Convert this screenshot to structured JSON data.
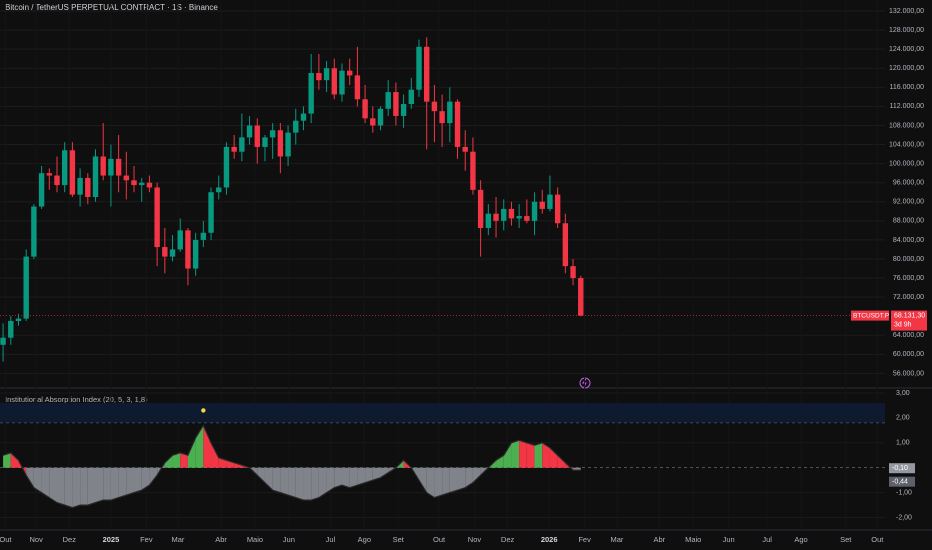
{
  "chart_data": {
    "type": "candlestick",
    "title": "Bitcoin / TetherUS PERPETUAL CONTRACT · 1S · Binance",
    "symbol": "BTCUSDT.P",
    "countdown": "3d 9h",
    "last_price": {
      "value": 68131.3,
      "label": "68.131,30"
    },
    "up_color": "#089981",
    "down_color": "#f23645",
    "open": [
      62000,
      63500,
      67000,
      67500,
      80500,
      91000,
      98000,
      97500,
      95500,
      102800,
      93500,
      97000,
      93000,
      101500,
      97500,
      101000,
      97500,
      96500,
      95500,
      96000,
      95000,
      82500,
      80500,
      82000,
      86000,
      78000,
      84000,
      85500,
      94000,
      95000,
      103500,
      102500,
      105500,
      108000,
      103500,
      105500,
      107000,
      101500,
      106500,
      109000,
      110500,
      119000,
      117500,
      120000,
      114500,
      119500,
      118500,
      113500,
      109500,
      108000,
      111500,
      115000,
      110000,
      112500,
      115500,
      124500,
      113000,
      111000,
      108500,
      113000,
      103500,
      102500,
      94500,
      86500,
      89500,
      88000,
      90500,
      88500,
      89000,
      88000,
      92000,
      90500,
      93500,
      87500,
      78500,
      76000
    ],
    "high": [
      66500,
      68000,
      68500,
      82000,
      91500,
      99500,
      99000,
      101500,
      104500,
      104500,
      99000,
      98000,
      103000,
      108500,
      104000,
      106000,
      102500,
      99500,
      97000,
      97500,
      96000,
      86500,
      85000,
      88500,
      86500,
      85500,
      88000,
      95000,
      97500,
      104500,
      106000,
      110500,
      110000,
      109500,
      106000,
      108500,
      108500,
      108000,
      111500,
      112000,
      123000,
      123000,
      121500,
      122000,
      121000,
      122000,
      124500,
      116500,
      112000,
      112000,
      117500,
      117000,
      114500,
      118000,
      126000,
      126500,
      116500,
      114500,
      116000,
      113500,
      107000,
      105500,
      96500,
      91500,
      93000,
      92500,
      92000,
      91500,
      92500,
      94000,
      94500,
      97500,
      95000,
      89500,
      80000,
      76500
    ],
    "low": [
      58500,
      62000,
      66000,
      67000,
      80000,
      90500,
      94500,
      94000,
      94000,
      93000,
      91000,
      91500,
      92000,
      96500,
      91000,
      94000,
      92500,
      94000,
      92000,
      94000,
      78500,
      77000,
      79500,
      81500,
      74500,
      76500,
      82500,
      84000,
      92500,
      93500,
      101000,
      100500,
      104000,
      100000,
      100500,
      101000,
      98000,
      99500,
      104000,
      107000,
      108500,
      115500,
      115000,
      113500,
      113000,
      116500,
      112000,
      108500,
      106500,
      107000,
      110000,
      108000,
      107500,
      111500,
      114000,
      103000,
      104500,
      103500,
      104500,
      101000,
      98500,
      93500,
      80500,
      85000,
      84500,
      86000,
      87000,
      86500,
      87500,
      85000,
      89500,
      90000,
      86500,
      77000,
      74500,
      68000
    ],
    "close": [
      63500,
      67000,
      67500,
      80500,
      91000,
      98000,
      97500,
      95500,
      102800,
      93500,
      97000,
      93000,
      101500,
      97500,
      101000,
      97500,
      96500,
      95500,
      96000,
      95000,
      82500,
      80500,
      82000,
      86000,
      78000,
      84000,
      85500,
      94000,
      95000,
      103500,
      102500,
      105500,
      108000,
      103500,
      105500,
      107000,
      101500,
      106500,
      109000,
      110500,
      119000,
      117500,
      120000,
      114500,
      119500,
      118500,
      113500,
      109500,
      108000,
      111500,
      115000,
      110000,
      112500,
      115500,
      124500,
      113000,
      111000,
      108500,
      113000,
      103500,
      102500,
      94500,
      86500,
      89500,
      88000,
      90500,
      88500,
      89000,
      88000,
      92000,
      90500,
      93500,
      87500,
      78500,
      76000,
      68131.3
    ],
    "ylim": [
      52000,
      134000
    ],
    "yticks": [
      {
        "value": 56000,
        "label": "56.000,00"
      },
      {
        "value": 60000,
        "label": "60.000,00"
      },
      {
        "value": 64000,
        "label": "64.000,00"
      },
      {
        "value": 72000,
        "label": "72.000,00"
      },
      {
        "value": 76000,
        "label": "76.000,00"
      },
      {
        "value": 80000,
        "label": "80.000,00"
      },
      {
        "value": 84000,
        "label": "84.000,00"
      },
      {
        "value": 88000,
        "label": "88.000,00"
      },
      {
        "value": 92000,
        "label": "92.000,00"
      },
      {
        "value": 96000,
        "label": "96.000,00"
      },
      {
        "value": 100000,
        "label": "100.000,00"
      },
      {
        "value": 104000,
        "label": "104.000,00"
      },
      {
        "value": 108000,
        "label": "108.000,00"
      },
      {
        "value": 112000,
        "label": "112.000,00"
      },
      {
        "value": 116000,
        "label": "116.000,00"
      },
      {
        "value": 120000,
        "label": "120.000,00"
      },
      {
        "value": 124000,
        "label": "124.000,00"
      },
      {
        "value": 128000,
        "label": "128.000,00"
      },
      {
        "value": 132000,
        "label": "132.000,00"
      }
    ],
    "xlim": [
      -0.4,
      114.5
    ],
    "xticks": [
      {
        "value": 0.3,
        "label": "Out"
      },
      {
        "value": 4.3,
        "label": "Nov"
      },
      {
        "value": 8.6,
        "label": "Dez"
      },
      {
        "value": 14,
        "label": "2025"
      },
      {
        "value": 18.6,
        "label": "Fev"
      },
      {
        "value": 22.7,
        "label": "Mar"
      },
      {
        "value": 28.3,
        "label": "Abr"
      },
      {
        "value": 32.7,
        "label": "Maio"
      },
      {
        "value": 37.1,
        "label": "Jun"
      },
      {
        "value": 42.5,
        "label": "Jul"
      },
      {
        "value": 46.9,
        "label": "Ago"
      },
      {
        "value": 51.3,
        "label": "Set"
      },
      {
        "value": 56.6,
        "label": "Out"
      },
      {
        "value": 61.2,
        "label": "Nov"
      },
      {
        "value": 65.5,
        "label": "Dez"
      },
      {
        "value": 70.9,
        "label": "2026"
      },
      {
        "value": 75.5,
        "label": "Fev"
      },
      {
        "value": 79.7,
        "label": "Mar"
      },
      {
        "value": 85.2,
        "label": "Abr"
      },
      {
        "value": 89.6,
        "label": "Maio"
      },
      {
        "value": 94.2,
        "label": "Jun"
      },
      {
        "value": 99.2,
        "label": "Jul"
      },
      {
        "value": 103.6,
        "label": "Ago"
      },
      {
        "value": 109.4,
        "label": "Set"
      },
      {
        "value": 113.5,
        "label": "Out"
      }
    ],
    "indicator": {
      "title": "Institutional Absorption Index (20, 5, 3, 1,8)",
      "values": [
        0.5,
        0.6,
        0.3,
        -0.3,
        -0.8,
        -1.0,
        -1.2,
        -1.4,
        -1.5,
        -1.6,
        -1.5,
        -1.5,
        -1.4,
        -1.3,
        -1.3,
        -1.2,
        -1.1,
        -1.0,
        -0.9,
        -0.7,
        -0.3,
        0.2,
        0.5,
        0.6,
        0.5,
        1.2,
        1.7,
        1.0,
        0.4,
        0.3,
        0.2,
        0.1,
        0.0,
        -0.3,
        -0.6,
        -0.9,
        -1.0,
        -1.1,
        -1.2,
        -1.3,
        -1.3,
        -1.2,
        -1.0,
        -0.8,
        -0.7,
        -0.8,
        -0.7,
        -0.6,
        -0.5,
        -0.4,
        -0.2,
        0.0,
        0.3,
        0.0,
        -0.5,
        -1.0,
        -1.2,
        -1.1,
        -1.0,
        -0.9,
        -0.8,
        -0.6,
        -0.3,
        0.0,
        0.3,
        0.5,
        1.0,
        1.1,
        1.0,
        0.9,
        1.0,
        0.8,
        0.5,
        0.2,
        -0.1,
        -0.1
      ],
      "rise_color": "#4caf50",
      "fall_color": "#f23645",
      "negative_color": "#9598a1",
      "upper_zone": [
        1.8,
        2.6
      ],
      "signal_dot": {
        "index": 26,
        "value": 2.3,
        "color": "#f5d742"
      },
      "last_values": [
        {
          "value": -0.1,
          "label": "-0,10"
        },
        {
          "value": -0.44,
          "label": "-0,44"
        }
      ],
      "ylim": [
        -2.5,
        3.2
      ],
      "yticks": [
        {
          "value": 3,
          "label": "3,00"
        },
        {
          "value": 2,
          "label": "2,00"
        },
        {
          "value": 1,
          "label": "1,00"
        },
        {
          "value": -1,
          "label": "-1,00"
        },
        {
          "value": -2,
          "label": "-2,00"
        }
      ]
    }
  }
}
